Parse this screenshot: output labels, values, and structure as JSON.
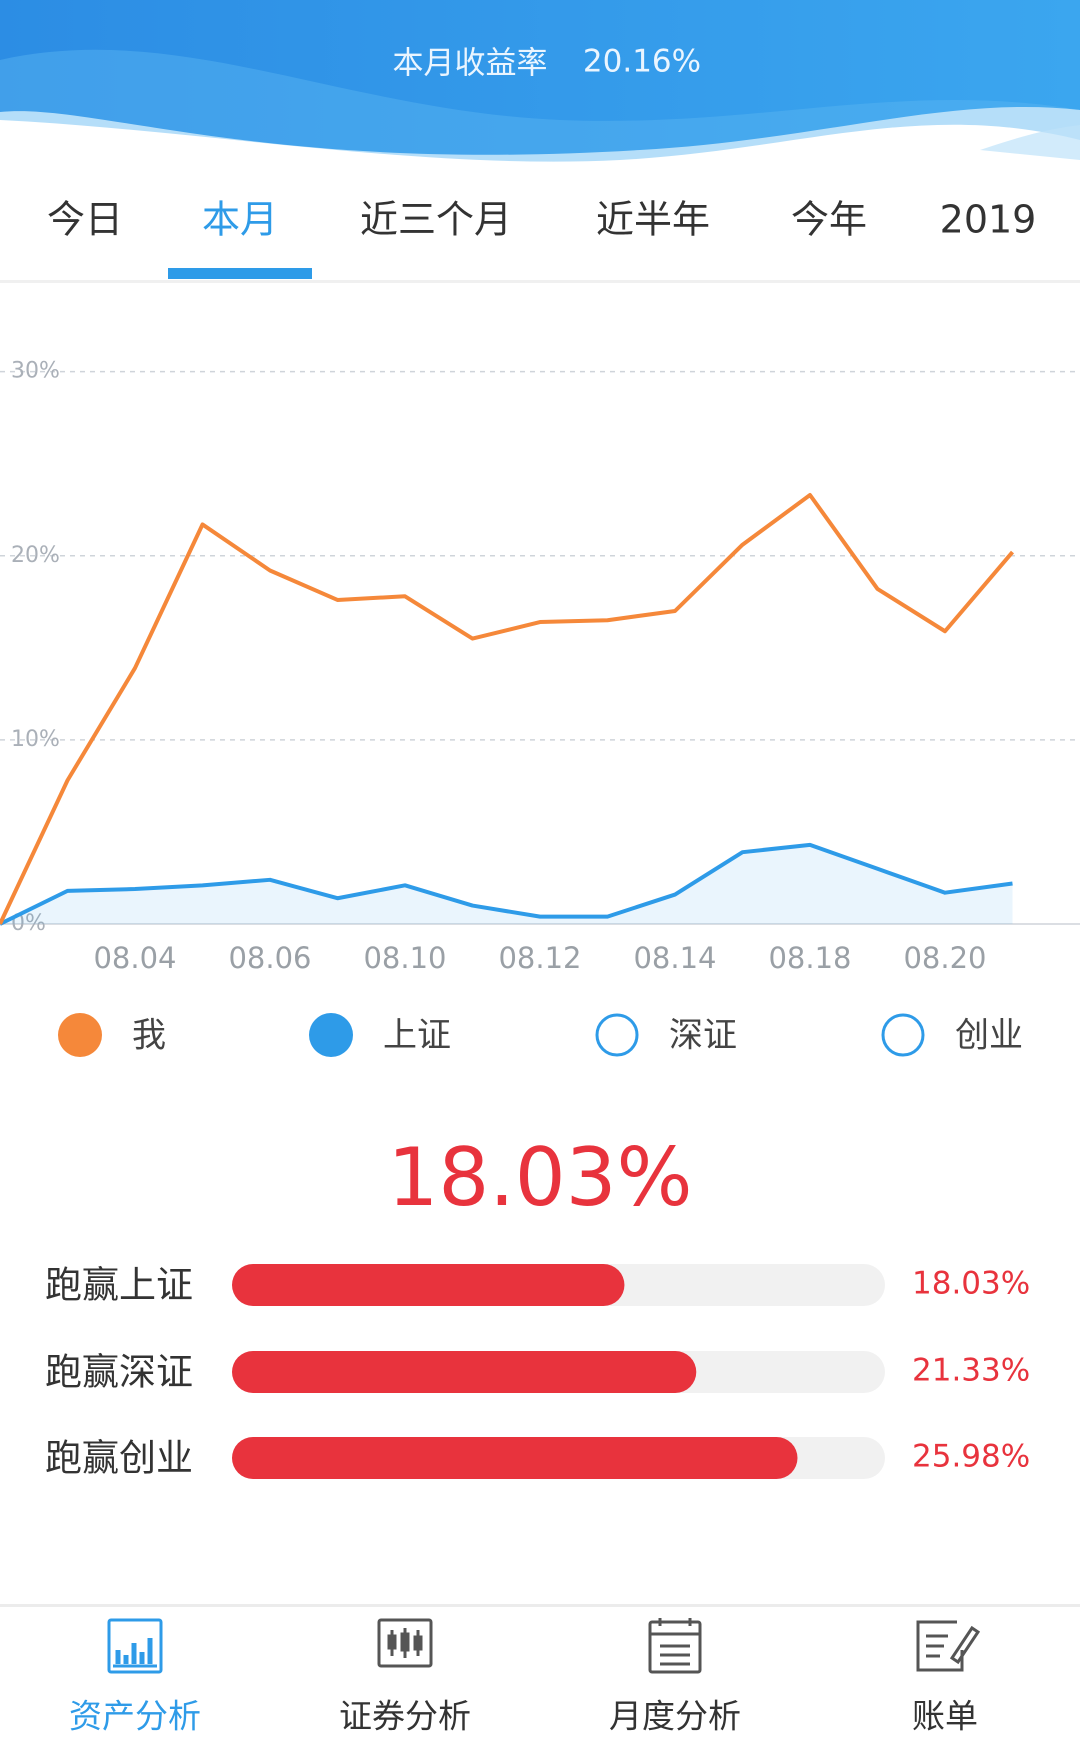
{
  "header": {
    "title": "本月收益率",
    "value": "20.16%"
  },
  "tabs": {
    "items": [
      "今日",
      "本月",
      "近三个月",
      "近半年",
      "今年",
      "2019"
    ],
    "active": 1
  },
  "chart_data": [
    {
      "type": "line",
      "categories": [
        null,
        null,
        "08.04",
        null,
        "08.06",
        null,
        "08.10",
        null,
        "08.12",
        null,
        "08.14",
        null,
        "08.18",
        null,
        "08.20",
        null
      ],
      "series": [
        {
          "name": "我",
          "color": "#f5883a",
          "values": [
            0,
            7.8,
            13.9,
            21.7,
            19.2,
            17.6,
            17.8,
            15.5,
            16.4,
            16.5,
            17.0,
            20.6,
            23.3,
            18.2,
            15.9,
            20.2
          ]
        },
        {
          "name": "上证",
          "color": "#2e9be8",
          "area": true,
          "values": [
            0,
            1.8,
            1.9,
            2.1,
            2.4,
            1.4,
            2.1,
            1.0,
            0.4,
            0.4,
            1.6,
            3.9,
            4.3,
            3.0,
            1.7,
            2.2
          ]
        }
      ],
      "hidden_series": [
        {
          "name": "深证",
          "color": "#2e9be8"
        },
        {
          "name": "创业",
          "color": "#2e9be8"
        }
      ],
      "ylim": [
        0,
        34
      ],
      "yticks": [
        {
          "value": 0,
          "label": "0%"
        },
        {
          "value": 10,
          "label": "10%"
        },
        {
          "value": 20,
          "label": "20%"
        },
        {
          "value": 30,
          "label": "30%"
        }
      ],
      "grid": true
    },
    {
      "type": "hbar",
      "categories": [
        "跑赢上证",
        "跑赢深证",
        "跑赢创业"
      ],
      "values": [
        18.03,
        21.33,
        25.98
      ],
      "value_labels": [
        "18.03%",
        "21.33%",
        "25.98%"
      ],
      "color": "#e8333d",
      "xlim": [
        0,
        30
      ]
    }
  ],
  "summary": {
    "headline": "18.03%"
  },
  "nav": {
    "items": [
      "资产分析",
      "证券分析",
      "月度分析",
      "账单"
    ],
    "active": 0
  }
}
